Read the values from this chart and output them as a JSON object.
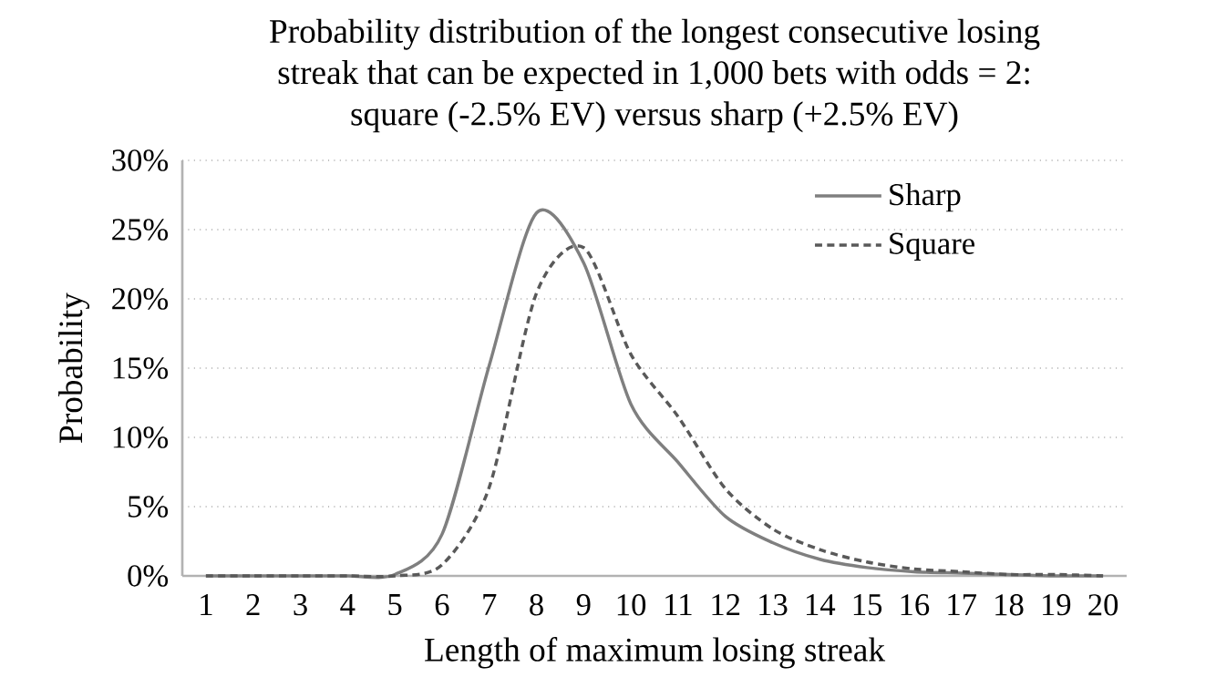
{
  "chart_data": {
    "type": "line",
    "title": "Probability distribution of the longest consecutive losing streak that can be expected in 1,000 bets with odds = 2: square (-2.5% EV) versus sharp (+2.5% EV)",
    "xlabel": "Length of maximum losing streak",
    "ylabel": "Probability",
    "categories": [
      "1",
      "2",
      "3",
      "4",
      "5",
      "6",
      "7",
      "8",
      "9",
      "10",
      "11",
      "12",
      "13",
      "14",
      "15",
      "16",
      "17",
      "18",
      "19",
      "20"
    ],
    "series": [
      {
        "name": "Sharp",
        "color": "#7f7f7f",
        "line_style": "solid",
        "values": [
          0,
          0,
          0,
          0,
          0.1,
          3,
          15.2,
          26.2,
          22.6,
          12.4,
          8.2,
          4.3,
          2.4,
          1.2,
          0.6,
          0.3,
          0.2,
          0.1,
          0,
          0
        ]
      },
      {
        "name": "Square",
        "color": "#595959",
        "line_style": "dashed",
        "values": [
          0,
          0,
          0,
          0,
          0,
          0.8,
          6.4,
          20.4,
          23.7,
          16,
          11.5,
          6.3,
          3.4,
          1.9,
          1.0,
          0.5,
          0.3,
          0.1,
          0.1,
          0
        ]
      }
    ],
    "ylim": [
      0,
      30
    ],
    "yticks": [
      {
        "value": 0,
        "label": "0%"
      },
      {
        "value": 5,
        "label": "5%"
      },
      {
        "value": 10,
        "label": "10%"
      },
      {
        "value": 15,
        "label": "15%"
      },
      {
        "value": 20,
        "label": "20%"
      },
      {
        "value": 25,
        "label": "25%"
      },
      {
        "value": 30,
        "label": "30%"
      }
    ],
    "grid": "y",
    "legend": "top right",
    "marker": "none"
  }
}
